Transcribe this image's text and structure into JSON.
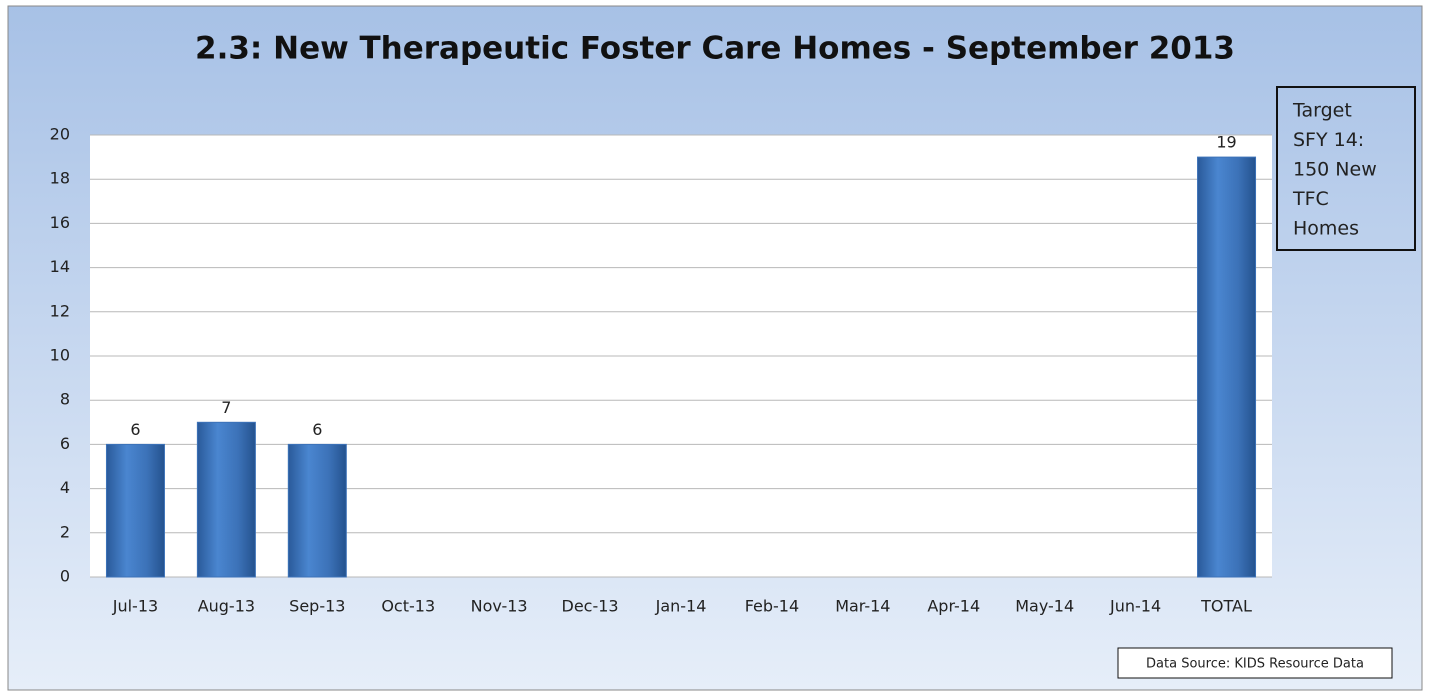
{
  "chart_data": {
    "type": "bar",
    "title": "2.3: New Therapeutic Foster Care Homes - September 2013",
    "categories": [
      "Jul-13",
      "Aug-13",
      "Sep-13",
      "Oct-13",
      "Nov-13",
      "Dec-13",
      "Jan-14",
      "Feb-14",
      "Mar-14",
      "Apr-14",
      "May-14",
      "Jun-14",
      "TOTAL"
    ],
    "values": [
      6,
      7,
      6,
      null,
      null,
      null,
      null,
      null,
      null,
      null,
      null,
      null,
      19
    ],
    "color": "#3c72b8",
    "ylim": [
      0,
      20
    ],
    "yticks": [
      0,
      2,
      4,
      6,
      8,
      10,
      12,
      14,
      16,
      18,
      20
    ],
    "grid": true,
    "annotation": [
      "Target",
      "SFY 14:",
      "150 New",
      "TFC",
      "Homes"
    ],
    "source": "Data Source: KIDS Resource Data"
  }
}
